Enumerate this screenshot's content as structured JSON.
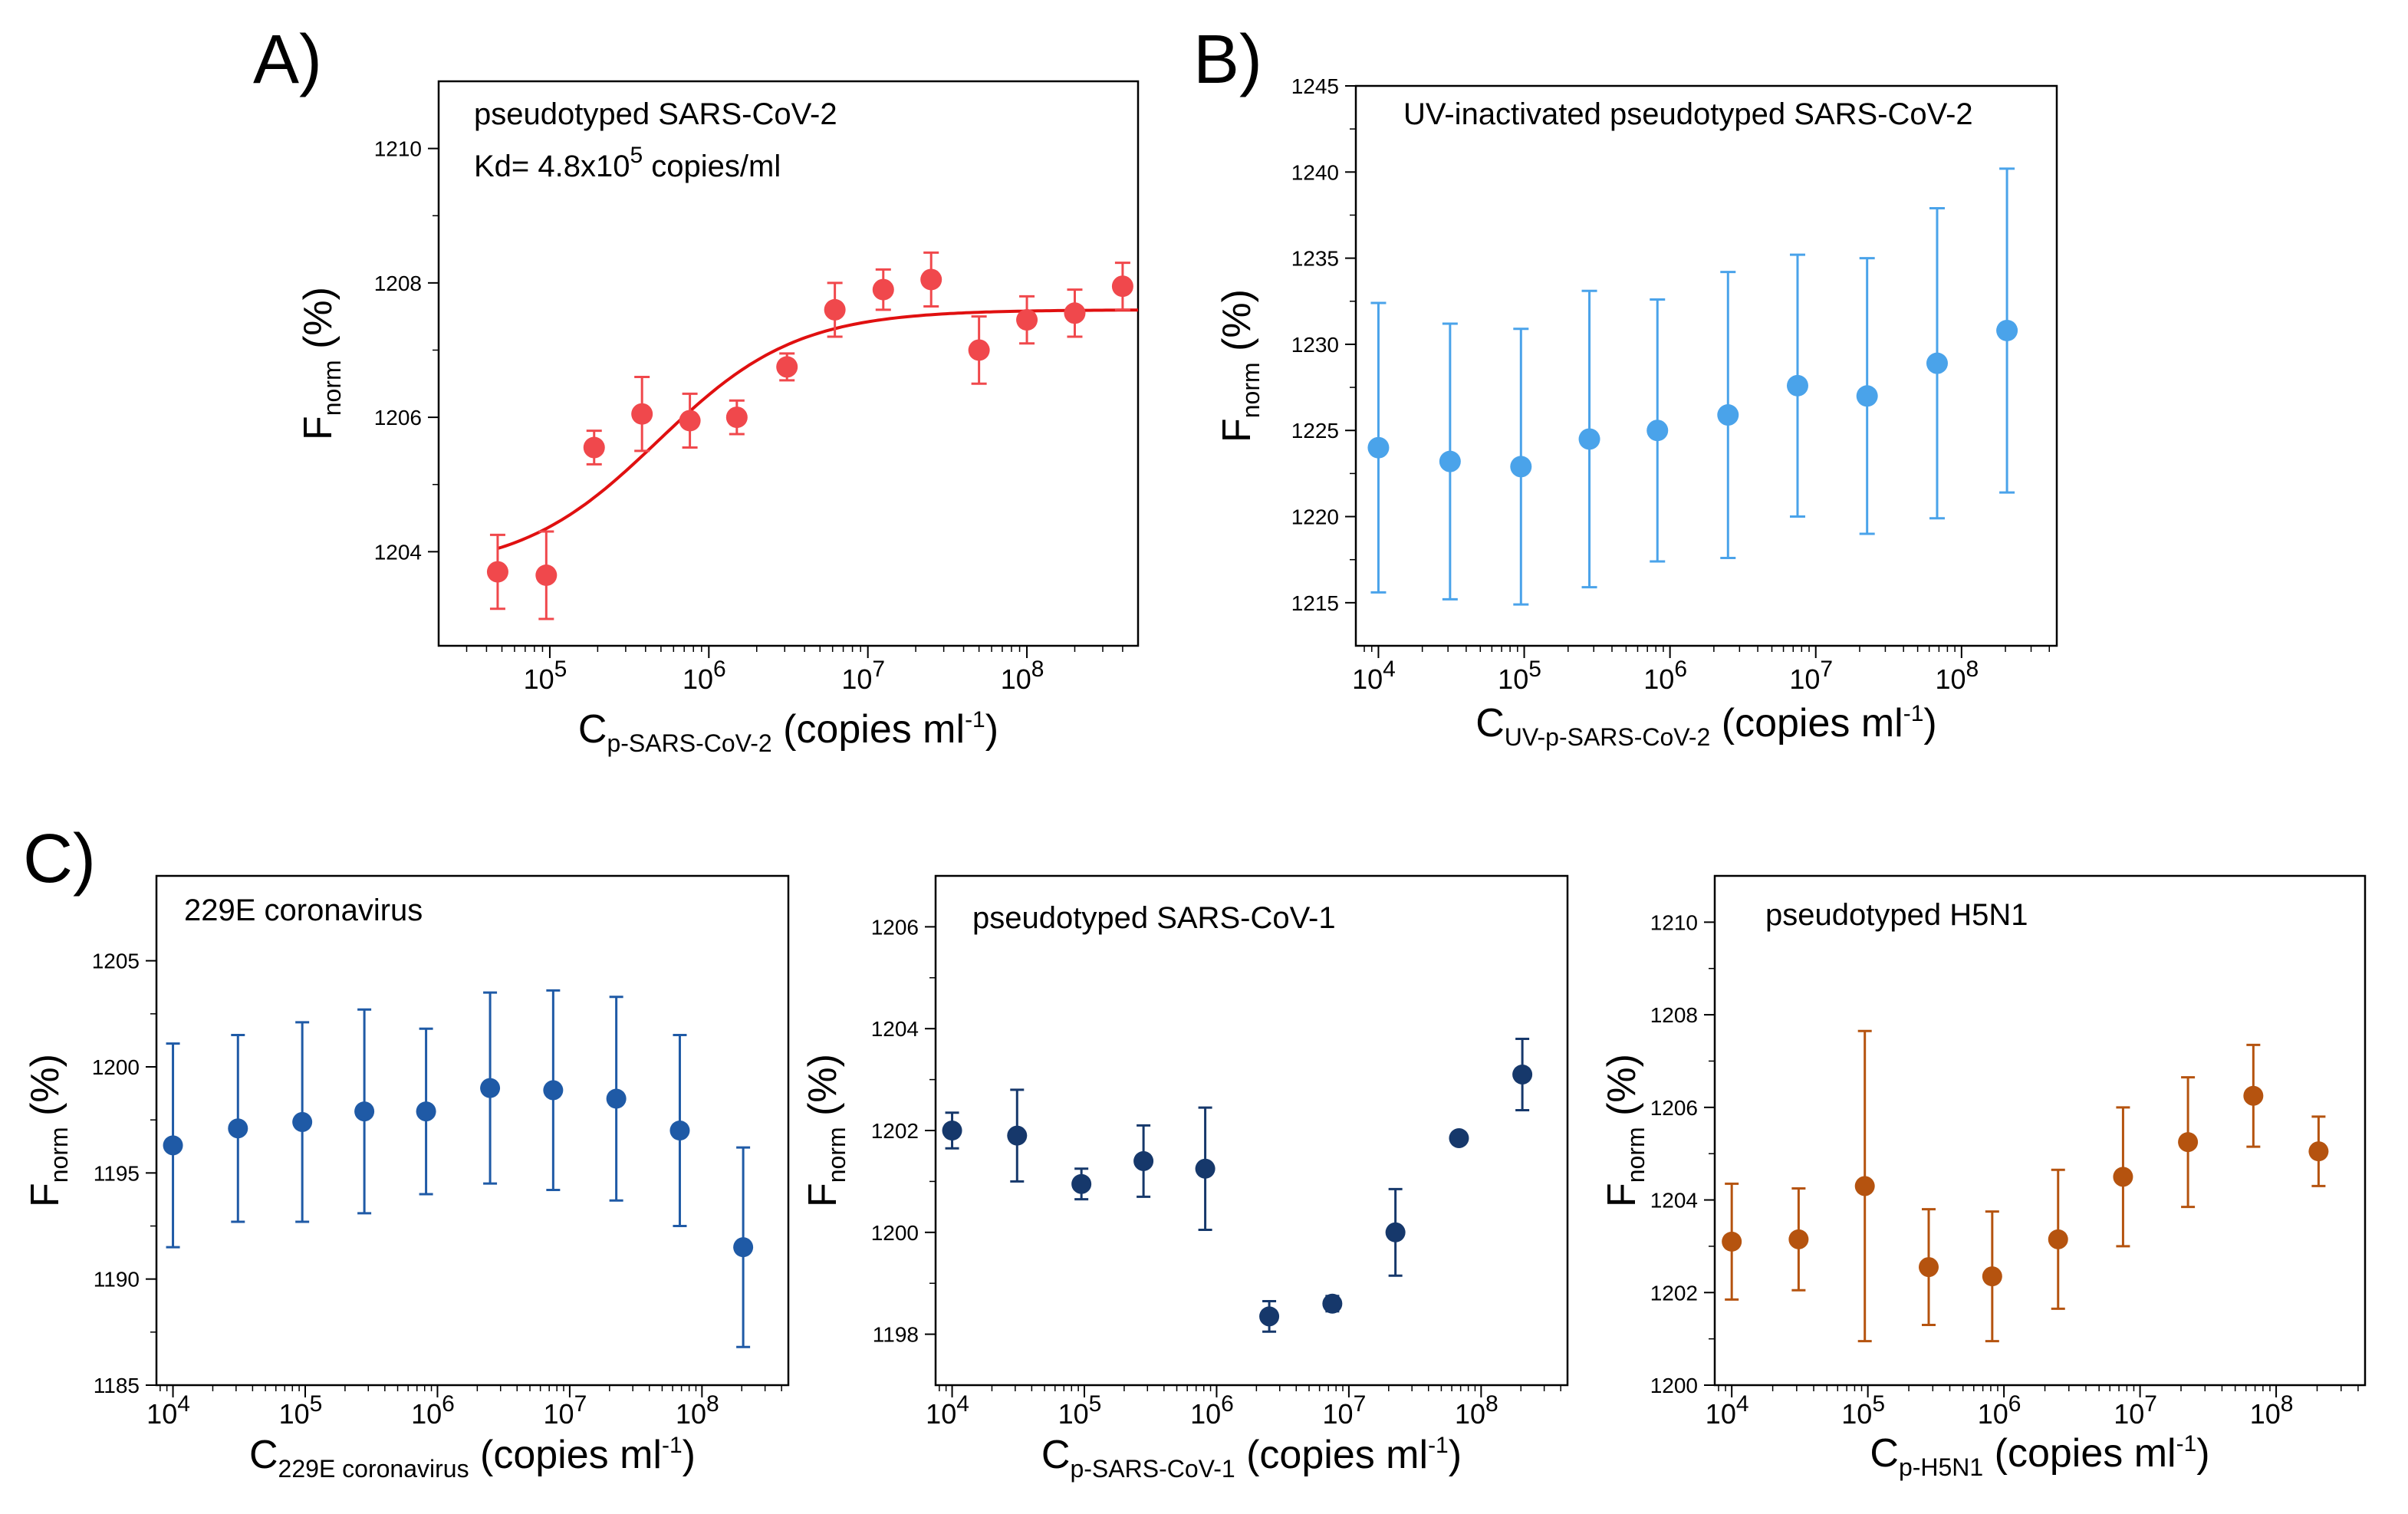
{
  "figure": {
    "panel_labels": [
      "A)",
      "B)",
      "C)"
    ]
  },
  "chart_data": [
    {
      "type": "scatter",
      "panel": "A",
      "annotation": "pseudotyped SARS-CoV-2",
      "annotation2": {
        "prefix": "Kd= 4.8x10",
        "sup": "5",
        "suffix": " copies/ml"
      },
      "xlabel": {
        "main": "C",
        "sub": "p-SARS-CoV-2",
        "rest": " (copies ml",
        "sup": "-1",
        "end": ")"
      },
      "ylabel": {
        "main": "F",
        "sub": "norm",
        "rest": " (%)"
      },
      "xscale": "log",
      "xlim": [
        20000,
        500000000
      ],
      "ylim": [
        1202.6,
        1211.0
      ],
      "xticks": [
        5,
        6,
        7,
        8
      ],
      "yticks": [
        1204,
        1206,
        1208,
        1210
      ],
      "color": "#f0484c",
      "fit_color": "#e01010",
      "fit": {
        "Kd": 480000,
        "bottom": 1203.7,
        "top": 1207.6
      },
      "series": [
        {
          "x": [
            47000,
            95000,
            190000,
            380000,
            760000,
            1500000,
            3100000,
            6200000,
            12500000,
            25000000,
            50000000,
            100000000,
            200000000,
            400000000
          ],
          "y": [
            1203.7,
            1203.65,
            1205.55,
            1206.05,
            1205.95,
            1206.0,
            1206.75,
            1207.6,
            1207.9,
            1208.05,
            1207.0,
            1207.45,
            1207.55,
            1207.95
          ],
          "err": [
            0.55,
            0.65,
            0.25,
            0.55,
            0.4,
            0.25,
            0.2,
            0.4,
            0.3,
            0.4,
            0.5,
            0.35,
            0.35,
            0.35
          ]
        }
      ]
    },
    {
      "type": "scatter",
      "panel": "B",
      "annotation": "UV-inactivated pseudotyped SARS-CoV-2",
      "xlabel": {
        "main": "C",
        "sub": "UV-p-SARS-CoV-2",
        "rest": " (copies ml",
        "sup": "-1",
        "end": ")"
      },
      "ylabel": {
        "main": "F",
        "sub": "norm",
        "rest": " (%)"
      },
      "xscale": "log",
      "xlim": [
        7000,
        450000000
      ],
      "ylim": [
        1212.5,
        1245.0
      ],
      "xticks": [
        4,
        5,
        6,
        7,
        8
      ],
      "yticks": [
        1215,
        1220,
        1225,
        1230,
        1235,
        1240,
        1245
      ],
      "color": "#4aa3ea",
      "series": [
        {
          "x": [
            10000,
            31000,
            95000,
            280000,
            820000,
            2500000,
            7500000,
            22500000,
            68000000,
            205000000
          ],
          "y": [
            1224.0,
            1223.2,
            1222.9,
            1224.5,
            1225.0,
            1225.9,
            1227.6,
            1227.0,
            1228.9,
            1230.8
          ],
          "err": [
            8.4,
            8.0,
            8.0,
            8.6,
            7.6,
            8.3,
            7.6,
            8.0,
            9.0,
            9.4
          ]
        }
      ]
    },
    {
      "type": "scatter",
      "panel": "C1",
      "annotation": "229E coronavirus",
      "xlabel": {
        "main": "C",
        "sub": "229E coronavirus",
        "rest": " (copies ml",
        "sup": "-1",
        "end": ")"
      },
      "ylabel": {
        "main": "F",
        "sub": "norm",
        "rest": " (%)"
      },
      "xscale": "log",
      "xlim": [
        7500,
        450000000
      ],
      "ylim": [
        1185.0,
        1209.0
      ],
      "xticks": [
        4,
        5,
        6,
        7,
        8
      ],
      "yticks": [
        1185,
        1190,
        1195,
        1200,
        1205
      ],
      "color": "#1f5aa6",
      "series": [
        {
          "x": [
            10000,
            31000,
            95000,
            280000,
            820000,
            2500000,
            7500000,
            22500000,
            68000000,
            205000000
          ],
          "y": [
            1196.3,
            1197.1,
            1197.4,
            1197.9,
            1197.9,
            1199.0,
            1198.9,
            1198.5,
            1197.0,
            1191.5
          ],
          "err": [
            4.8,
            4.4,
            4.7,
            4.8,
            3.9,
            4.5,
            4.7,
            4.8,
            4.5,
            4.7
          ]
        }
      ]
    },
    {
      "type": "scatter",
      "panel": "C2",
      "annotation": "pseudotyped SARS-CoV-1",
      "xlabel": {
        "main": "C",
        "sub": "p-SARS-CoV-1",
        "rest": " (copies ml",
        "sup": "-1",
        "end": ")"
      },
      "ylabel": {
        "main": "F",
        "sub": "norm",
        "rest": " (%)"
      },
      "xscale": "log",
      "xlim": [
        7500,
        450000000
      ],
      "ylim": [
        1197.0,
        1207.0
      ],
      "xticks": [
        4,
        5,
        6,
        7,
        8
      ],
      "yticks": [
        1198,
        1200,
        1202,
        1204,
        1206
      ],
      "color": "#16386b",
      "series": [
        {
          "x": [
            10000,
            31000,
            95000,
            280000,
            820000,
            2500000,
            7500000,
            22500000,
            68000000,
            205000000
          ],
          "y": [
            1202.0,
            1201.9,
            1200.95,
            1201.4,
            1201.25,
            1198.35,
            1198.6,
            1200.0,
            1201.85,
            1203.1
          ],
          "err": [
            0.35,
            0.9,
            0.3,
            0.7,
            1.2,
            0.3,
            0.15,
            0.85,
            0.05,
            0.7
          ]
        }
      ]
    },
    {
      "type": "scatter",
      "panel": "C3",
      "annotation": "pseudotyped H5N1",
      "xlabel": {
        "main": "C",
        "sub": "p-H5N1",
        "rest": " (copies ml",
        "sup": "-1",
        "end": ")"
      },
      "ylabel": {
        "main": "F",
        "sub": "norm",
        "rest": " (%)"
      },
      "xscale": "log",
      "xlim": [
        7500,
        450000000
      ],
      "ylim": [
        1200.0,
        1211.0
      ],
      "xticks": [
        4,
        5,
        6,
        7,
        8
      ],
      "yticks": [
        1200,
        1202,
        1204,
        1206,
        1208,
        1210
      ],
      "color": "#b5530f",
      "series": [
        {
          "x": [
            10000,
            31000,
            95000,
            280000,
            820000,
            2500000,
            7500000,
            22500000,
            68000000,
            205000000
          ],
          "y": [
            1203.1,
            1203.15,
            1204.3,
            1202.55,
            1202.35,
            1203.15,
            1204.5,
            1205.25,
            1206.25,
            1205.05
          ],
          "err": [
            1.25,
            1.1,
            3.35,
            1.25,
            1.4,
            1.5,
            1.5,
            1.4,
            1.1,
            0.75
          ]
        }
      ]
    }
  ]
}
